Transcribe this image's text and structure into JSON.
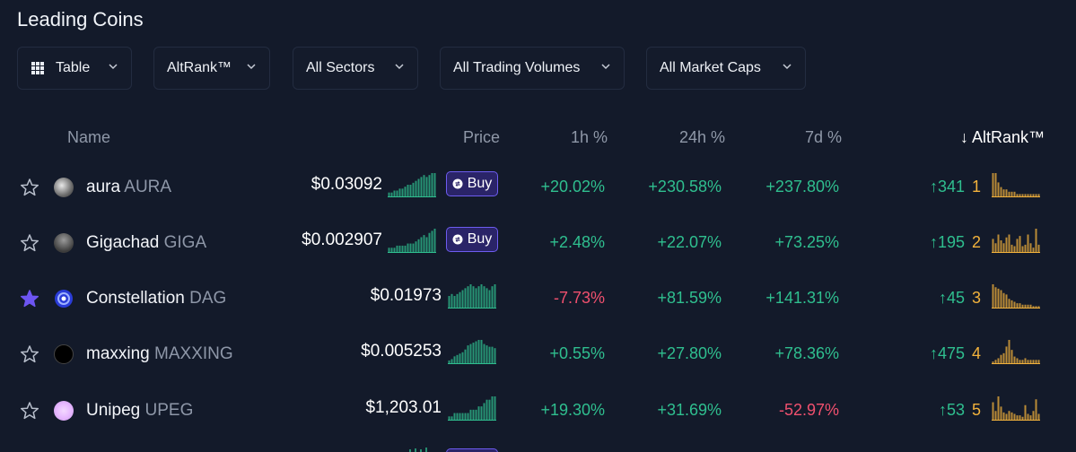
{
  "title": "Leading Coins",
  "filters": {
    "view": "Table",
    "sort": "AltRank™",
    "sector": "All Sectors",
    "volume": "All Trading Volumes",
    "market_cap": "All Market Caps"
  },
  "headers": {
    "name": "Name",
    "price": "Price",
    "h1": "1h %",
    "h24": "24h %",
    "d7": "7d %",
    "altrank": "↓ AltRank™"
  },
  "buy_label": "Buy",
  "colors": {
    "positive": "#2fbf8f",
    "negative": "#f0506e",
    "rank": "#f2b23c",
    "accent": "#6d5cf0"
  },
  "rows": [
    {
      "name": "aura",
      "symbol": "AURA",
      "price": "$0.03092",
      "h1": "+20.02%",
      "h24": "+230.58%",
      "d7": "+237.80%",
      "rank_change": "↑341",
      "rank": "1",
      "favorite": false,
      "has_buy": true
    },
    {
      "name": "Gigachad",
      "symbol": "GIGA",
      "price": "$0.002907",
      "h1": "+2.48%",
      "h24": "+22.07%",
      "d7": "+73.25%",
      "rank_change": "↑195",
      "rank": "2",
      "favorite": false,
      "has_buy": true
    },
    {
      "name": "Constellation",
      "symbol": "DAG",
      "price": "$0.01973",
      "h1": "-7.73%",
      "h24": "+81.59%",
      "d7": "+141.31%",
      "rank_change": "↑45",
      "rank": "3",
      "favorite": true,
      "has_buy": false
    },
    {
      "name": "maxxing",
      "symbol": "MAXXING",
      "price": "$0.005253",
      "h1": "+0.55%",
      "h24": "+27.80%",
      "d7": "+78.36%",
      "rank_change": "↑475",
      "rank": "4",
      "favorite": false,
      "has_buy": false
    },
    {
      "name": "Unipeg",
      "symbol": "UPEG",
      "price": "$1,203.01",
      "h1": "+19.30%",
      "h24": "+31.69%",
      "d7": "-52.97%",
      "rank_change": "↑53",
      "rank": "5",
      "favorite": false,
      "has_buy": false
    }
  ]
}
